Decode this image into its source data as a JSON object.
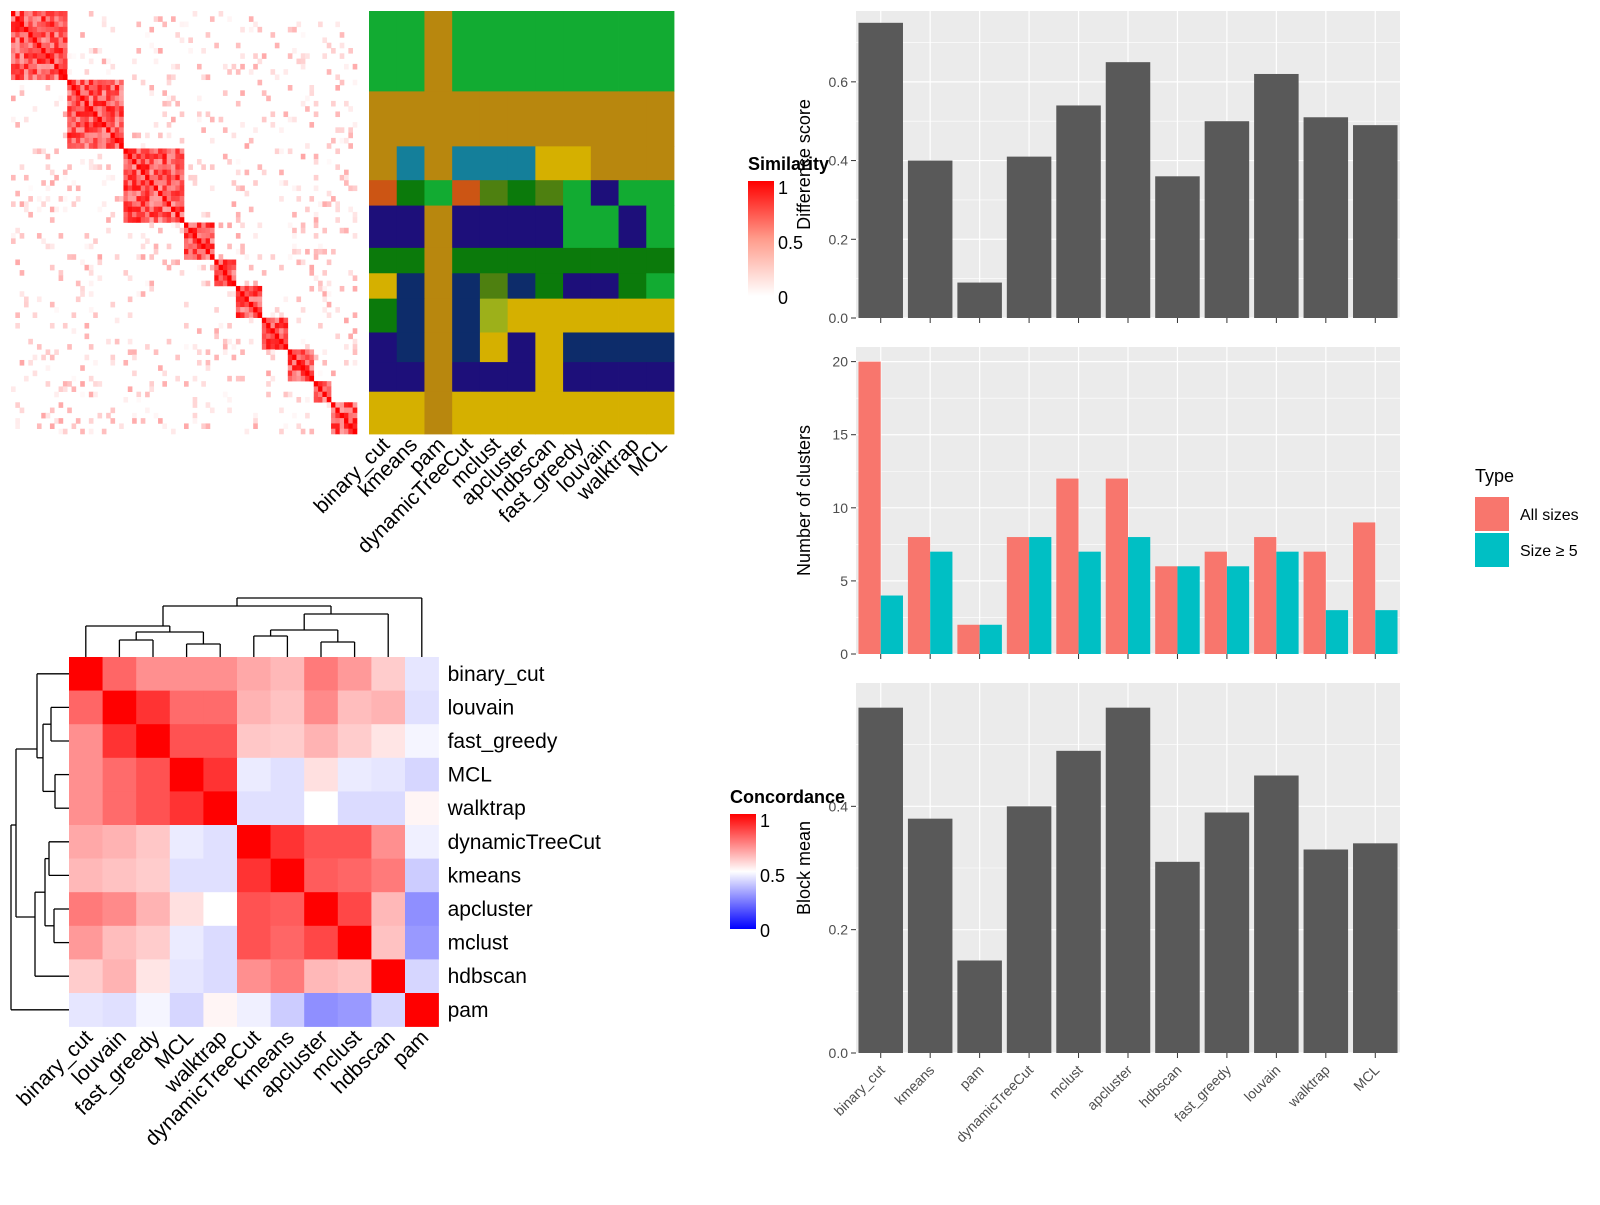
{
  "methods_bar_order": [
    "binary_cut",
    "kmeans",
    "pam",
    "dynamicTreeCut",
    "mclust",
    "apcluster",
    "hdbscan",
    "fast_greedy",
    "louvain",
    "walktrap",
    "MCL"
  ],
  "methods_heat_order": [
    "binary_cut",
    "louvain",
    "fast_greedy",
    "MCL",
    "walktrap",
    "dynamicTreeCut",
    "kmeans",
    "apcluster",
    "mclust",
    "hdbscan",
    "pam"
  ],
  "methods_class_order": [
    "binary_cut",
    "kmeans",
    "pam",
    "dynamicTreeCut",
    "mclust",
    "apcluster",
    "hdbscan",
    "fast_greedy",
    "louvain",
    "walktrap",
    "MCL"
  ],
  "similarity_legend": {
    "title": "Similarity",
    "ticks": [
      "1",
      "0.5",
      "0"
    ]
  },
  "concordance_legend": {
    "title": "Concordance",
    "ticks": [
      "1",
      "0.5",
      "0"
    ]
  },
  "type_legend": {
    "title": "Type",
    "items": [
      {
        "label": "All sizes",
        "color": "#F8766D"
      },
      {
        "label": "Size ≥ 5",
        "color": "#00BFC4"
      }
    ]
  },
  "colors": {
    "bar": "#595959",
    "panel": "#ebebeb",
    "all_sizes": "#F8766D",
    "size5": "#00BFC4"
  },
  "chart_data": [
    {
      "type": "bar",
      "ylabel": "Difference score",
      "categories": [
        "binary_cut",
        "kmeans",
        "pam",
        "dynamicTreeCut",
        "mclust",
        "apcluster",
        "hdbscan",
        "fast_greedy",
        "louvain",
        "walktrap",
        "MCL"
      ],
      "values": [
        0.75,
        0.4,
        0.09,
        0.41,
        0.54,
        0.65,
        0.36,
        0.5,
        0.62,
        0.51,
        0.49
      ],
      "ylim": [
        0,
        0.78
      ],
      "yticks": [
        "0.0",
        "0.2",
        "0.4",
        "0.6"
      ]
    },
    {
      "type": "bar",
      "ylabel": "Number of clusters",
      "categories": [
        "binary_cut",
        "kmeans",
        "pam",
        "dynamicTreeCut",
        "mclust",
        "apcluster",
        "hdbscan",
        "fast_greedy",
        "louvain",
        "walktrap",
        "MCL"
      ],
      "series": [
        {
          "name": "All sizes",
          "values": [
            20,
            8,
            2,
            8,
            12,
            12,
            6,
            7,
            8,
            7,
            9
          ]
        },
        {
          "name": "Size ≥ 5",
          "values": [
            4,
            7,
            2,
            8,
            7,
            8,
            6,
            6,
            7,
            3,
            3
          ]
        }
      ],
      "ylim": [
        0,
        21
      ],
      "yticks": [
        "0",
        "5",
        "10",
        "15",
        "20"
      ]
    },
    {
      "type": "bar",
      "ylabel": "Block mean",
      "categories": [
        "binary_cut",
        "kmeans",
        "pam",
        "dynamicTreeCut",
        "mclust",
        "apcluster",
        "hdbscan",
        "fast_greedy",
        "louvain",
        "walktrap",
        "MCL"
      ],
      "values": [
        0.56,
        0.38,
        0.15,
        0.4,
        0.49,
        0.56,
        0.31,
        0.39,
        0.45,
        0.33,
        0.34
      ],
      "ylim": [
        0,
        0.6
      ],
      "yticks": [
        "0.0",
        "0.2",
        "0.4"
      ]
    },
    {
      "type": "heatmap",
      "rows": [
        "binary_cut",
        "louvain",
        "fast_greedy",
        "MCL",
        "walktrap",
        "dynamicTreeCut",
        "kmeans",
        "apcluster",
        "mclust",
        "hdbscan",
        "pam"
      ],
      "cols": [
        "binary_cut",
        "louvain",
        "fast_greedy",
        "MCL",
        "walktrap",
        "dynamicTreeCut",
        "kmeans",
        "apcluster",
        "mclust",
        "hdbscan",
        "pam"
      ],
      "values": [
        [
          1.0,
          0.8,
          0.72,
          0.72,
          0.72,
          0.67,
          0.64,
          0.76,
          0.7,
          0.6,
          0.45
        ],
        [
          0.8,
          1.0,
          0.9,
          0.79,
          0.79,
          0.65,
          0.62,
          0.73,
          0.63,
          0.65,
          0.44
        ],
        [
          0.72,
          0.9,
          1.0,
          0.84,
          0.84,
          0.61,
          0.6,
          0.65,
          0.6,
          0.55,
          0.48
        ],
        [
          0.72,
          0.79,
          0.84,
          1.0,
          0.9,
          0.46,
          0.44,
          0.56,
          0.46,
          0.45,
          0.42
        ],
        [
          0.72,
          0.79,
          0.84,
          0.9,
          1.0,
          0.44,
          0.44,
          0.5,
          0.43,
          0.43,
          0.52
        ],
        [
          0.67,
          0.65,
          0.61,
          0.46,
          0.44,
          1.0,
          0.9,
          0.84,
          0.84,
          0.72,
          0.47
        ],
        [
          0.64,
          0.62,
          0.6,
          0.44,
          0.44,
          0.9,
          1.0,
          0.82,
          0.8,
          0.76,
          0.4
        ],
        [
          0.76,
          0.73,
          0.65,
          0.56,
          0.5,
          0.84,
          0.82,
          1.0,
          0.86,
          0.64,
          0.28
        ],
        [
          0.7,
          0.63,
          0.6,
          0.46,
          0.43,
          0.84,
          0.8,
          0.86,
          1.0,
          0.62,
          0.3
        ],
        [
          0.6,
          0.65,
          0.55,
          0.45,
          0.43,
          0.72,
          0.76,
          0.64,
          0.62,
          1.0,
          0.42
        ],
        [
          0.45,
          0.44,
          0.48,
          0.42,
          0.52,
          0.47,
          0.4,
          0.28,
          0.3,
          0.42,
          1.0
        ]
      ]
    }
  ]
}
